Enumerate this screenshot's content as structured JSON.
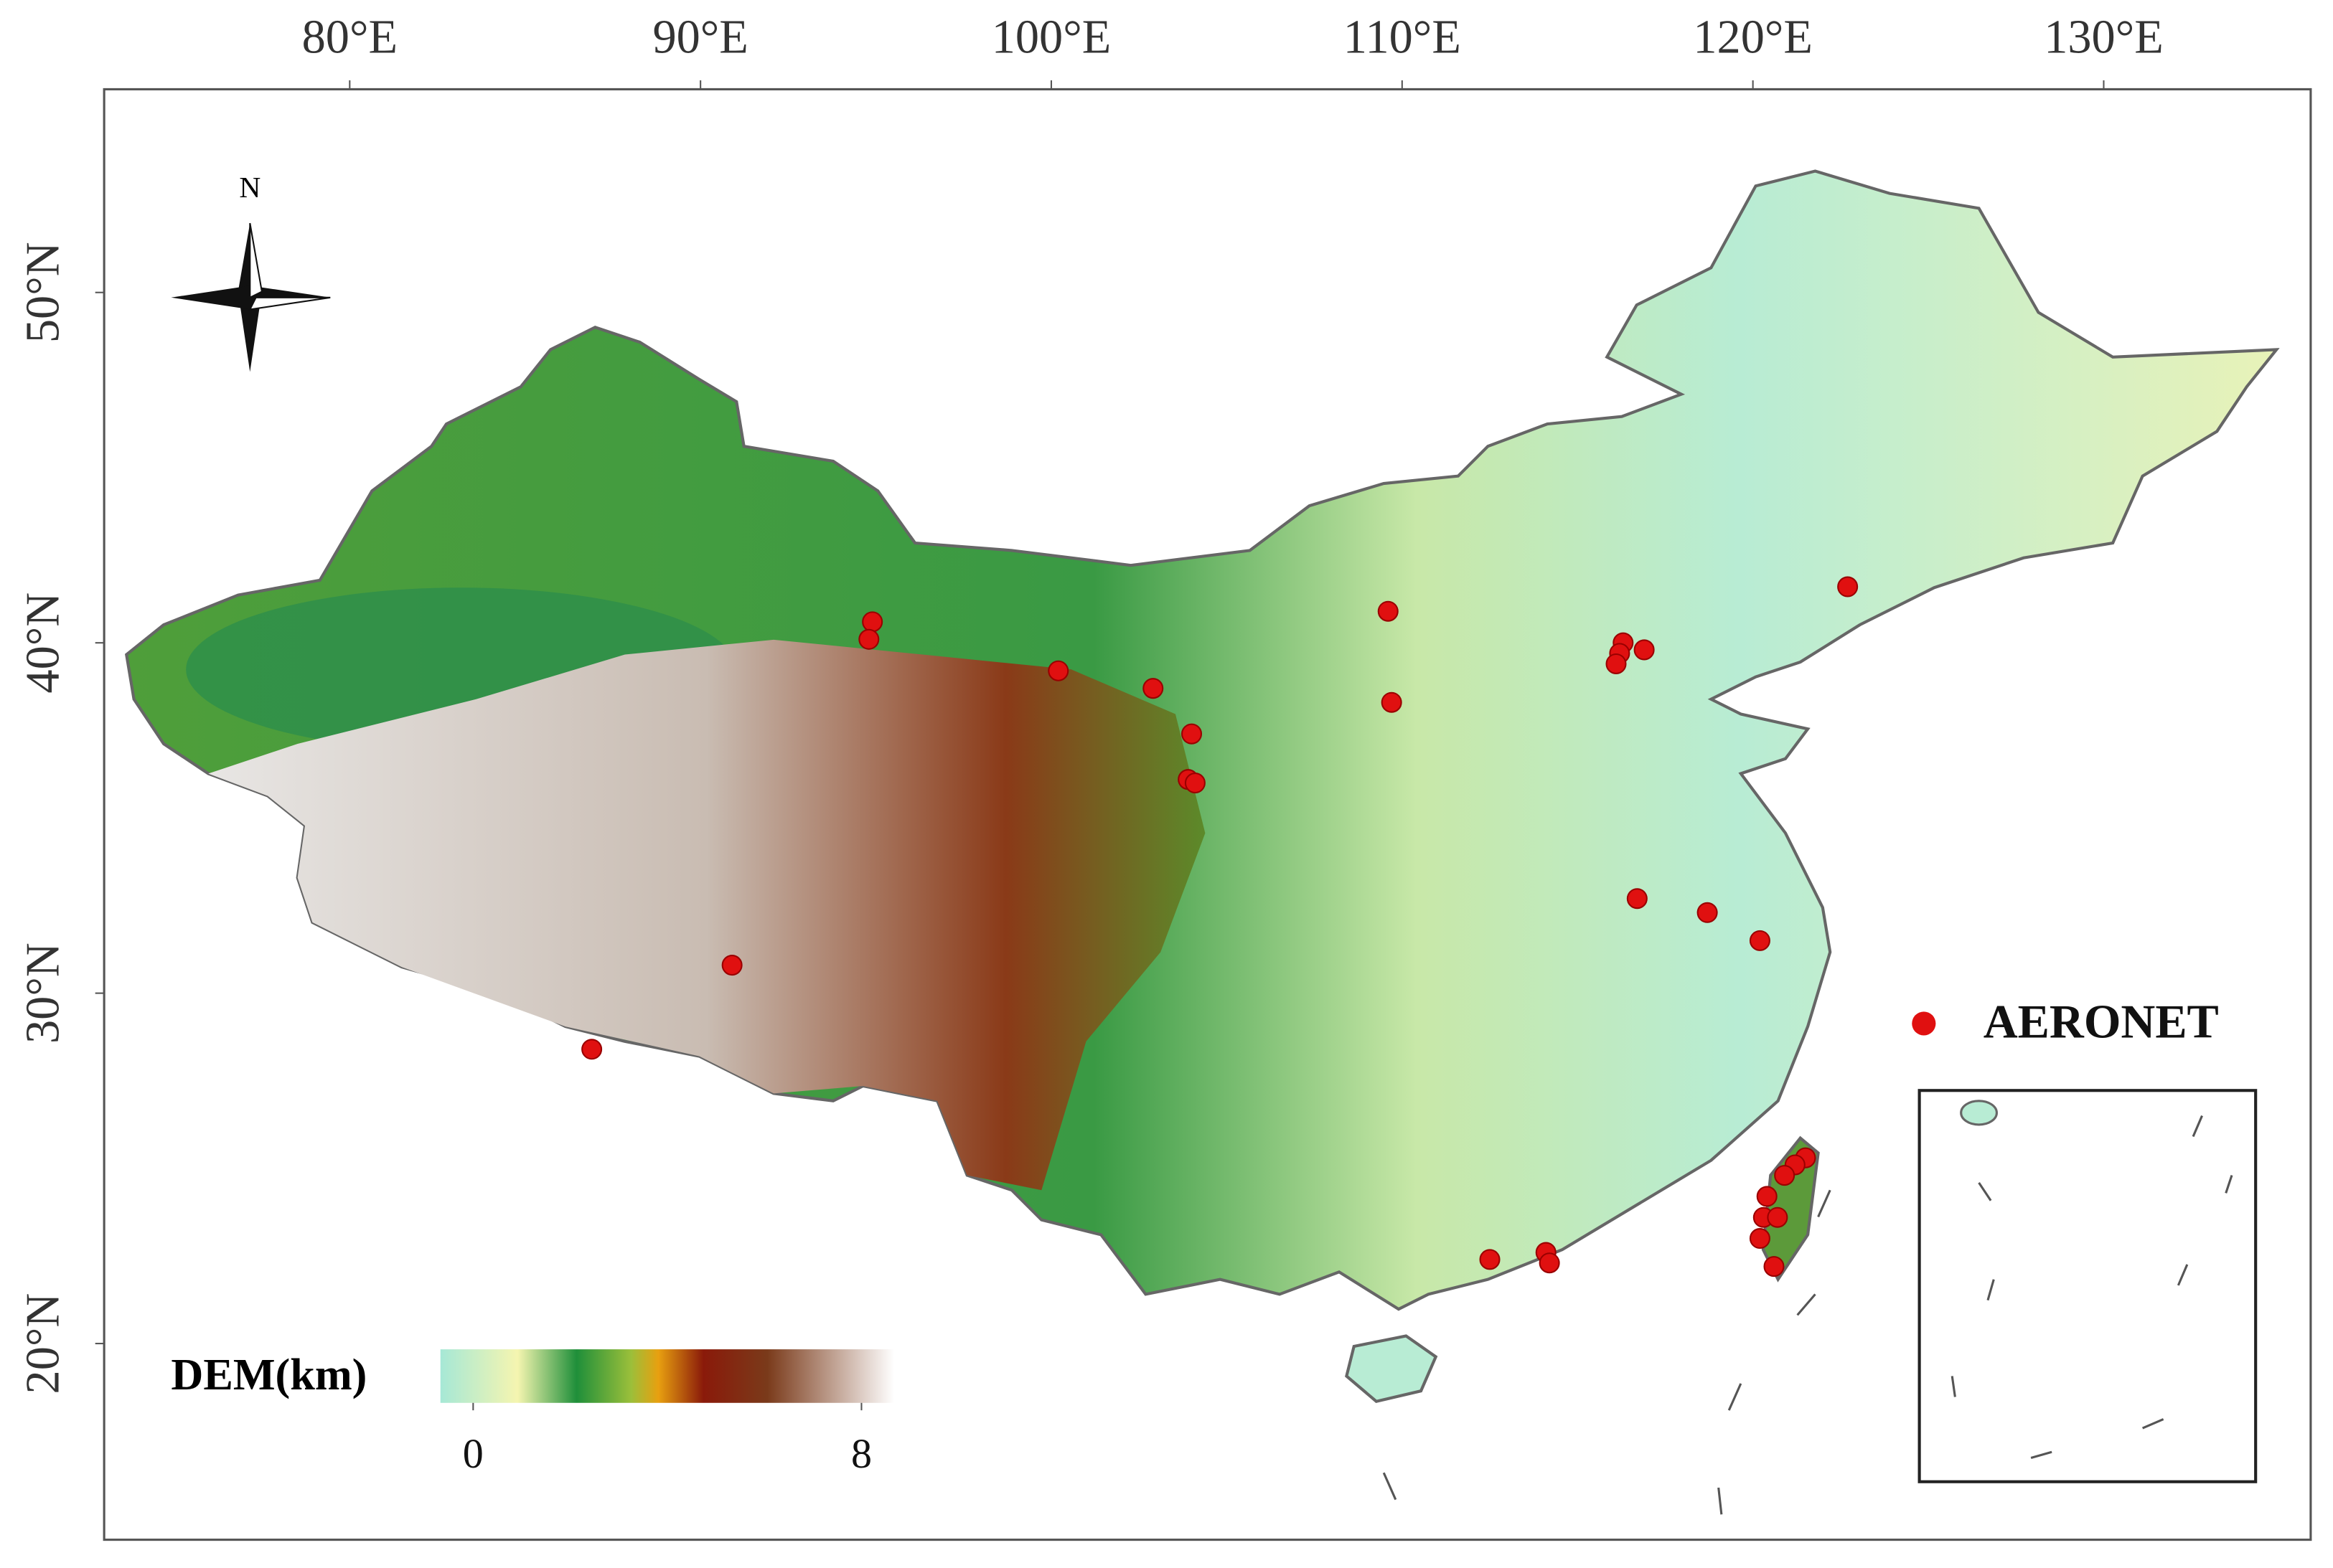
{
  "map": {
    "xlim": [
      73,
      135.9
    ],
    "ylim": [
      14.4,
      55.8
    ],
    "xticks": [
      {
        "value": 80,
        "label": "80°E"
      },
      {
        "value": 90,
        "label": "90°E"
      },
      {
        "value": 100,
        "label": "100°E"
      },
      {
        "value": 110,
        "label": "110°E"
      },
      {
        "value": 120,
        "label": "120°E"
      },
      {
        "value": 130,
        "label": "130°E"
      }
    ],
    "yticks": [
      {
        "value": 20,
        "label": "20°N"
      },
      {
        "value": 30,
        "label": "30°N"
      },
      {
        "value": 40,
        "label": "40°N"
      },
      {
        "value": 50,
        "label": "50°N"
      }
    ],
    "compass": "N",
    "sites": {
      "name": "AERONET",
      "color": "#e01010",
      "lon": [
        94.9,
        94.8,
        100.2,
        102.9,
        104.0,
        103.9,
        104.1,
        109.6,
        109.7,
        116.3,
        116.2,
        116.1,
        116.9,
        122.7,
        116.7,
        118.7,
        120.2,
        90.9,
        86.9,
        112.5,
        114.1,
        114.2,
        121.5,
        121.2,
        120.9,
        120.4,
        120.3,
        120.7,
        120.2,
        120.6
      ],
      "lat": [
        40.6,
        40.1,
        39.2,
        38.7,
        37.4,
        36.1,
        36.0,
        40.9,
        38.3,
        40.0,
        39.7,
        39.4,
        39.8,
        41.6,
        32.7,
        32.3,
        31.5,
        30.8,
        28.4,
        22.4,
        22.6,
        22.3,
        25.3,
        25.1,
        24.8,
        24.2,
        23.6,
        23.6,
        23.0,
        22.2
      ]
    },
    "colorbar": {
      "title": "DEM(km)",
      "ticks": [
        0,
        8
      ]
    }
  }
}
